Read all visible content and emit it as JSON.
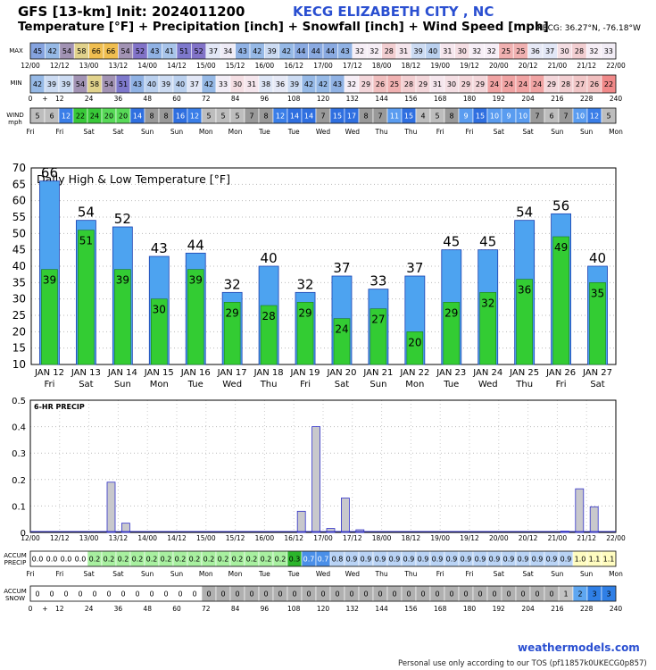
{
  "header": {
    "model_title": "GFS [13-km] Init: 2024011200",
    "station_title": "KECG ELIZABETH CITY , NC",
    "subtitle": "Temperature [°F] + Precipitation [inch] + Snowfall [inch] + Wind Speed [mph]",
    "coords": "KECG: 36.27°N, -76.18°W"
  },
  "strip_labels": {
    "max": "MAX",
    "min": "MIN",
    "wind": "WIND",
    "wind_unit": "mph",
    "accum_precip": "ACCUM\nPRECIP",
    "accum_snow": "ACCUM\nSNOW"
  },
  "time_ticks": [
    "12/00",
    "12/12",
    "13/00",
    "13/12",
    "14/00",
    "14/12",
    "15/00",
    "15/12",
    "16/00",
    "16/12",
    "17/00",
    "17/12",
    "18/00",
    "18/12",
    "19/00",
    "19/12",
    "20/00",
    "20/12",
    "21/00",
    "21/12",
    "22/00"
  ],
  "hour_ticks": [
    "0",
    "+",
    "12",
    "24",
    "36",
    "48",
    "60",
    "72",
    "84",
    "96",
    "108",
    "120",
    "132",
    "144",
    "156",
    "168",
    "180",
    "192",
    "204",
    "216",
    "228",
    "240"
  ],
  "day_ticks": [
    "Fri",
    "Fri",
    "Sat",
    "Sat",
    "Sun",
    "Sun",
    "Mon",
    "Mon",
    "Tue",
    "Tue",
    "Wed",
    "Wed",
    "Thu",
    "Thu",
    "Fri",
    "Fri",
    "Sat",
    "Sat",
    "Sun",
    "Sun",
    "Mon"
  ],
  "max_row": [
    45,
    42,
    54,
    58,
    66,
    66,
    54,
    52,
    43,
    41,
    51,
    52,
    37,
    34,
    43,
    42,
    39,
    42,
    44,
    44,
    44,
    43,
    32,
    32,
    28,
    31,
    39,
    40,
    31,
    30,
    32,
    32,
    25,
    25,
    36,
    37,
    30,
    28,
    32,
    33
  ],
  "min_row": [
    42,
    39,
    39,
    54,
    58,
    54,
    51,
    43,
    40,
    39,
    40,
    37,
    42,
    33,
    30,
    31,
    38,
    36,
    39,
    42,
    42,
    43,
    32,
    29,
    26,
    25,
    28,
    29,
    31,
    30,
    29,
    29,
    24,
    24,
    24,
    24,
    29,
    28,
    27,
    26,
    22
  ],
  "wind_row": [
    5,
    6,
    12,
    22,
    24,
    20,
    20,
    14,
    8,
    8,
    16,
    12,
    5,
    5,
    5,
    7,
    8,
    12,
    14,
    14,
    7,
    15,
    17,
    8,
    7,
    11,
    15,
    4,
    5,
    8,
    9,
    15,
    10,
    9,
    10,
    7,
    6,
    7,
    10,
    12,
    5
  ],
  "accum_precip_row": [
    "0.0",
    "0.0",
    "0.0",
    "0.0",
    "0.2",
    "0.2",
    "0.2",
    "0.2",
    "0.2",
    "0.2",
    "0.2",
    "0.2",
    "0.2",
    "0.2",
    "0.2",
    "0.2",
    "0.2",
    "0.2",
    "0.3",
    "0.7",
    "0.7",
    "0.8",
    "0.9",
    "0.9",
    "0.9",
    "0.9",
    "0.9",
    "0.9",
    "0.9",
    "0.9",
    "0.9",
    "0.9",
    "0.9",
    "0.9",
    "0.9",
    "0.9",
    "0.9",
    "0.9",
    "1.0",
    "1.1",
    "1.1"
  ],
  "accum_snow_row": [
    "0",
    "0",
    "0",
    "0",
    "0",
    "0",
    "0",
    "0",
    "0",
    "0",
    "0",
    "0",
    "0",
    "0",
    "0",
    "0",
    "0",
    "0",
    "0",
    "0",
    "0",
    "0",
    "0",
    "0",
    "0",
    "0",
    "0",
    "0",
    "0",
    "0",
    "0",
    "0",
    "0",
    "0",
    "0",
    "0",
    "0",
    "1",
    "2",
    "3",
    "3"
  ],
  "chart_data": [
    {
      "type": "bar",
      "title": "Daily High & Low Temperature [°F]",
      "categories": [
        "JAN 12",
        "JAN 13",
        "JAN 14",
        "JAN 15",
        "JAN 16",
        "JAN 17",
        "JAN 18",
        "JAN 19",
        "JAN 20",
        "JAN 21",
        "JAN 22",
        "JAN 23",
        "JAN 24",
        "JAN 25",
        "JAN 26",
        "JAN 27"
      ],
      "weekdays": [
        "Fri",
        "Sat",
        "Sun",
        "Mon",
        "Tue",
        "Wed",
        "Thu",
        "Fri",
        "Sat",
        "Sun",
        "Mon",
        "Tue",
        "Wed",
        "Thu",
        "Fri",
        "Sat"
      ],
      "series": [
        {
          "values": [
            66,
            54,
            52,
            43,
            44,
            32,
            40,
            32,
            37,
            33,
            37,
            45,
            45,
            54,
            56,
            40
          ],
          "color": "#4da3f0"
        },
        {
          "values": [
            39,
            51,
            39,
            30,
            39,
            29,
            28,
            29,
            24,
            27,
            20,
            29,
            32,
            36,
            49,
            35
          ],
          "color": "#33cc33"
        }
      ],
      "ylim": [
        10,
        70
      ],
      "yticks": [
        10,
        15,
        20,
        25,
        30,
        35,
        40,
        45,
        50,
        55,
        60,
        65,
        70
      ],
      "grid": true
    },
    {
      "type": "bar",
      "title": "6-HR PRECIP",
      "x_hours": [
        0,
        6,
        12,
        18,
        24,
        30,
        36,
        42,
        48,
        54,
        60,
        66,
        72,
        78,
        84,
        90,
        96,
        102,
        108,
        114,
        120,
        126,
        132,
        138,
        144,
        150,
        156,
        162,
        168,
        174,
        180,
        186,
        192,
        198,
        204,
        210,
        216,
        222,
        228,
        234,
        240
      ],
      "values": [
        0,
        0,
        0,
        0,
        0,
        0.19,
        0.035,
        0,
        0,
        0,
        0,
        0,
        0,
        0,
        0,
        0,
        0,
        0,
        0.08,
        0.4,
        0.015,
        0.13,
        0.01,
        0,
        0,
        0,
        0,
        0,
        0,
        0,
        0,
        0,
        0,
        0,
        0,
        0,
        0.005,
        0.165,
        0.097,
        0,
        0
      ],
      "ylim": [
        0,
        0.5
      ],
      "yticks": [
        0,
        0.1,
        0.2,
        0.3,
        0.4,
        0.5
      ],
      "color": "#c8c8cc",
      "grid": true
    }
  ],
  "footer": {
    "brand": "weathermodels.com",
    "note": "Personal use only according to our TOS (pf11857k0UKECG0p857)"
  }
}
